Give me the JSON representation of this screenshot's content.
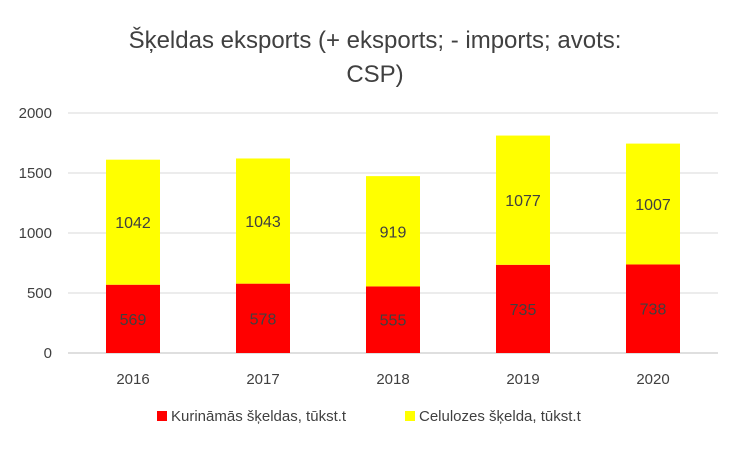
{
  "chart_data": {
    "type": "bar",
    "stacked": true,
    "title_lines": [
      "Šķeldas eksports (+ eksports; - imports; avots:",
      "CSP)"
    ],
    "categories": [
      "2016",
      "2017",
      "2018",
      "2019",
      "2020"
    ],
    "series": [
      {
        "name": "Kurināmās šķeldas, tūkst.t",
        "color": "#FF0000",
        "values": [
          569,
          578,
          555,
          735,
          738
        ]
      },
      {
        "name": "Celulozes šķelda, tūkst.t",
        "color": "#FFFF00",
        "values": [
          1042,
          1043,
          919,
          1077,
          1007
        ]
      }
    ],
    "ylim": [
      0,
      2000
    ],
    "yticks": [
      0,
      500,
      1000,
      1500,
      2000
    ],
    "grid": true,
    "legend": "bottom"
  }
}
